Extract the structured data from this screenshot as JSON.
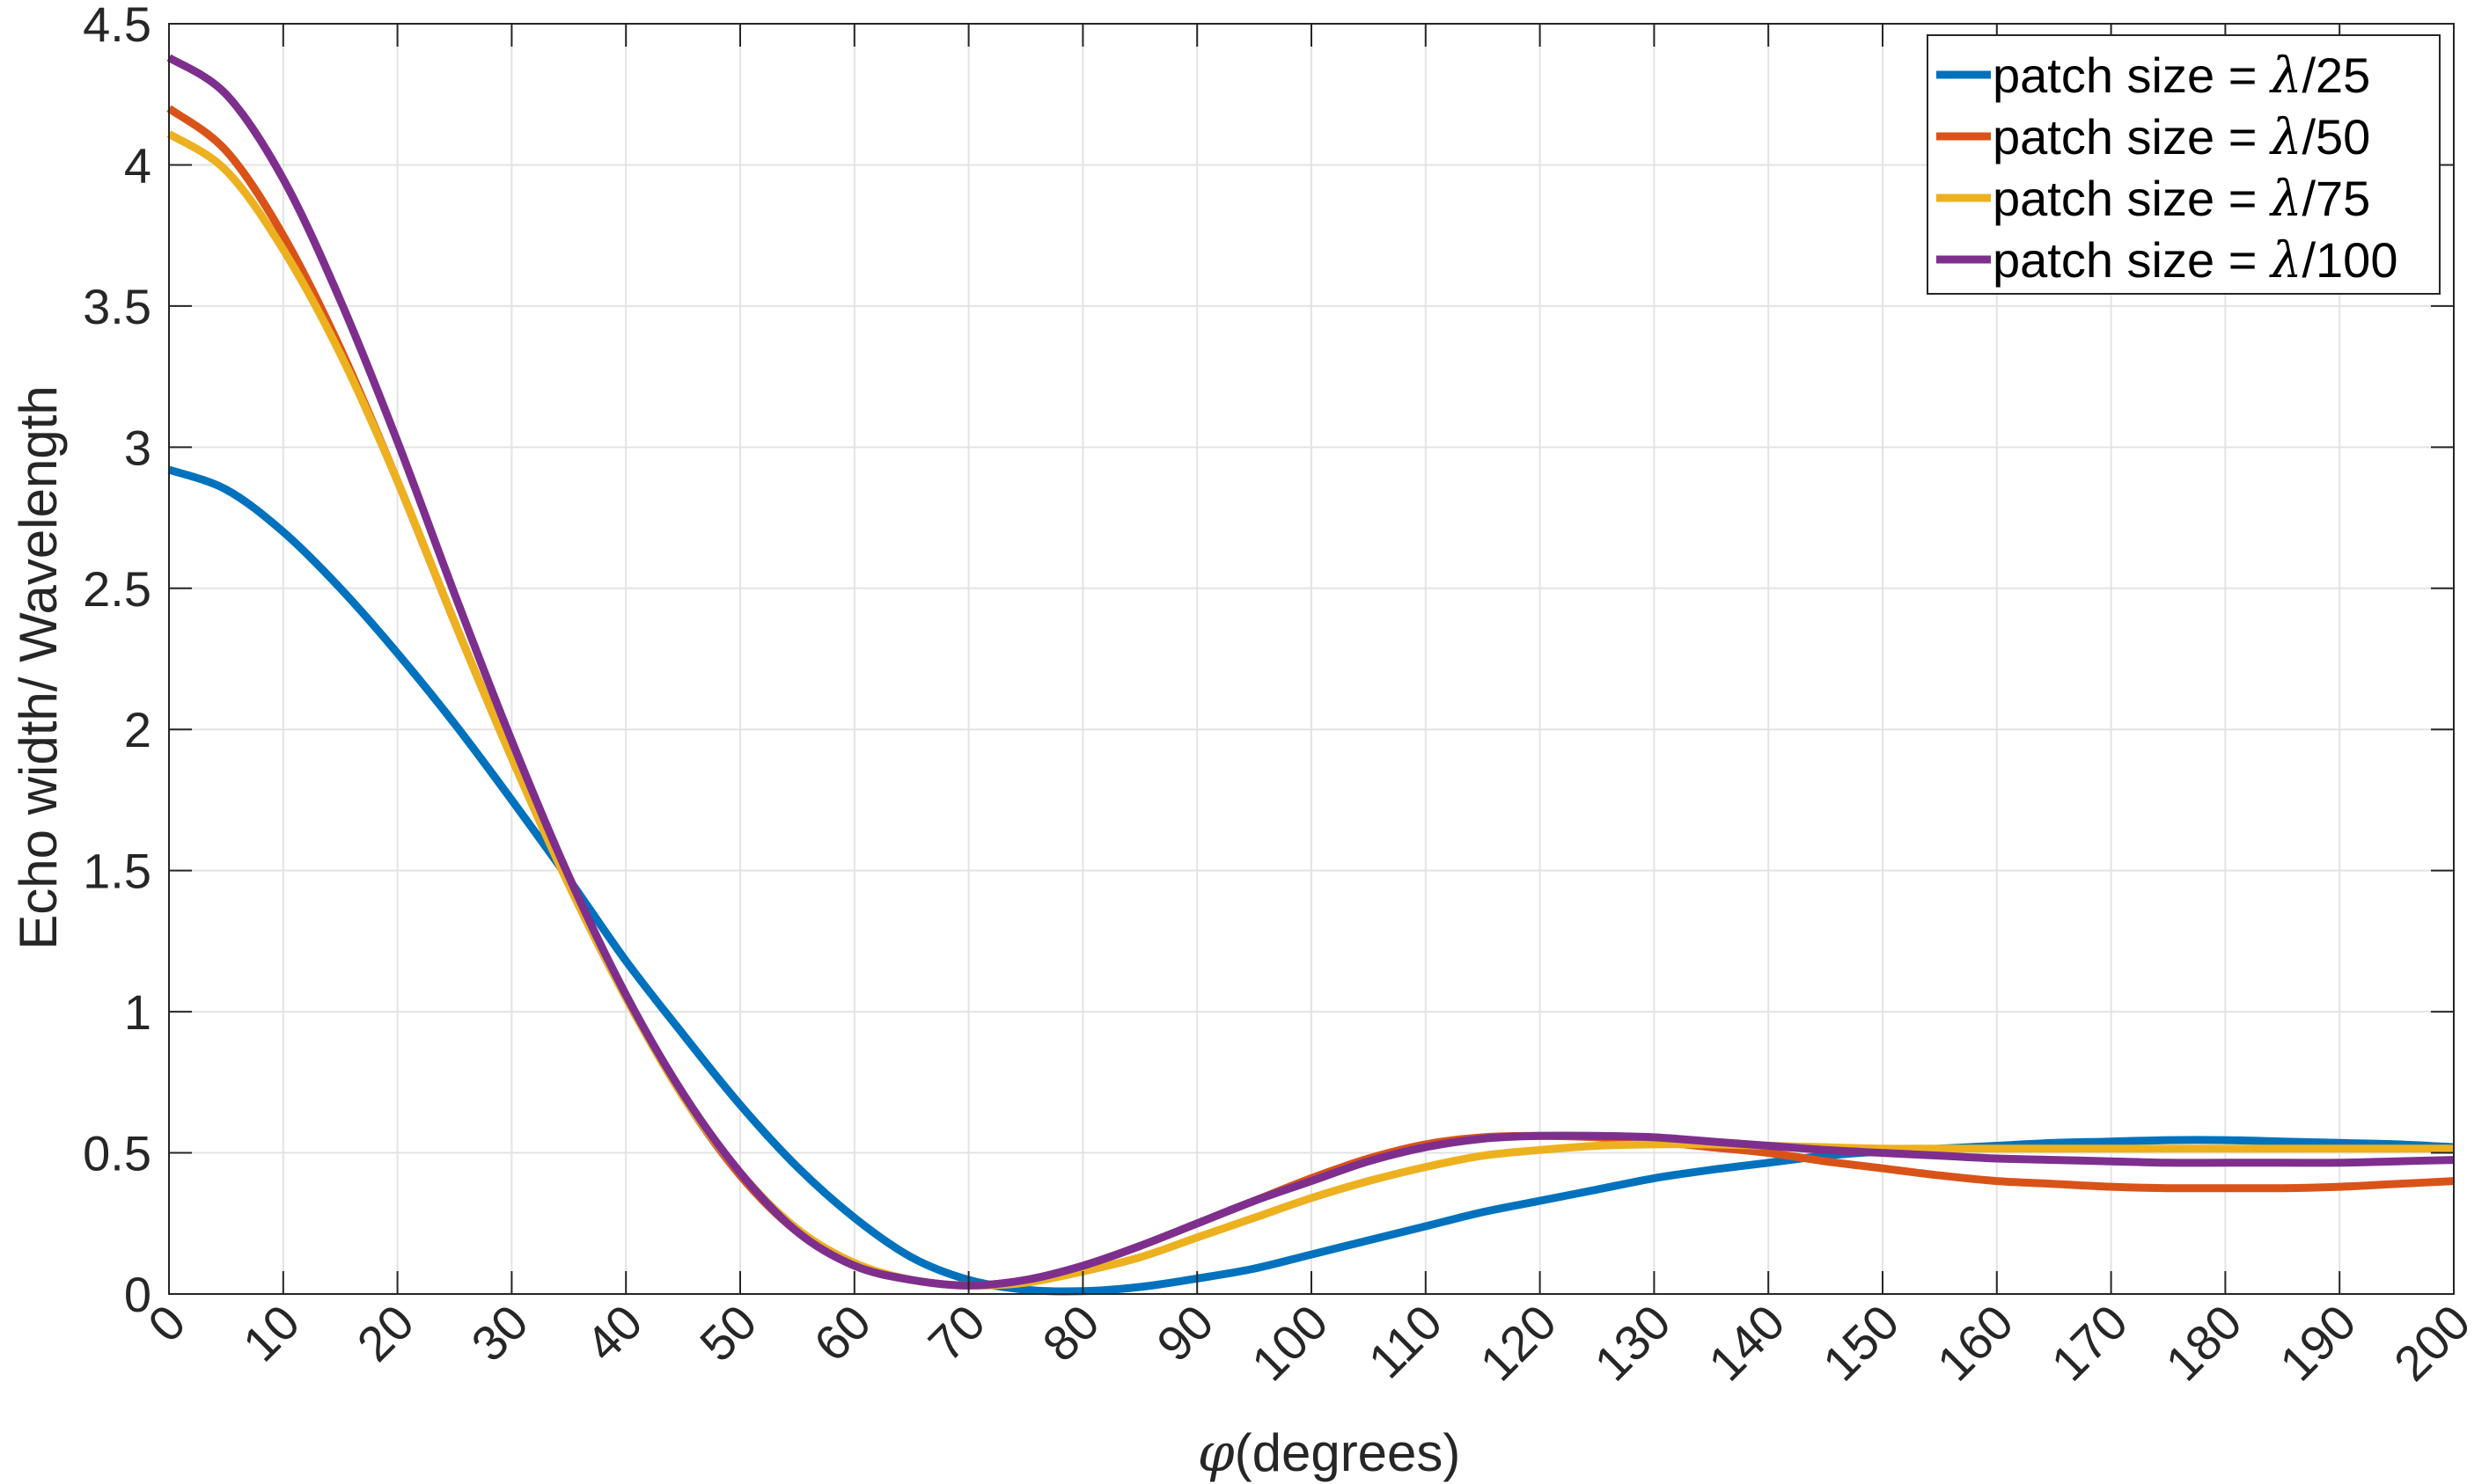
{
  "chart_data": {
    "type": "line",
    "title": "",
    "xlabel_symbol": "φ",
    "xlabel_text": "(degrees)",
    "ylabel": "Echo width/ Wavelength",
    "xlim": [
      0,
      200
    ],
    "ylim": [
      0,
      4.5
    ],
    "x_ticks": [
      "0",
      "10",
      "20",
      "30",
      "40",
      "50",
      "60",
      "70",
      "80",
      "90",
      "100",
      "110",
      "120",
      "130",
      "140",
      "150",
      "160",
      "170",
      "180",
      "190",
      "200"
    ],
    "y_ticks": [
      "0",
      "0.5",
      "1",
      "1.5",
      "2",
      "2.5",
      "3",
      "3.5",
      "4",
      "4.5"
    ],
    "grid": true,
    "legend_position": "top-right",
    "legend_prefix": "patch size = ",
    "legend_symbol": "λ",
    "series": [
      {
        "name": "patch size = λ/25",
        "label_suffix": "/25",
        "color": "#0072BD",
        "x": [
          0,
          5,
          10,
          15,
          20,
          25,
          30,
          35,
          40,
          45,
          50,
          55,
          60,
          65,
          70,
          75,
          80,
          85,
          90,
          95,
          100,
          105,
          110,
          115,
          120,
          125,
          130,
          135,
          140,
          145,
          150,
          155,
          160,
          165,
          170,
          175,
          180,
          185,
          190,
          195,
          200
        ],
        "y": [
          2.92,
          2.85,
          2.7,
          2.5,
          2.27,
          2.02,
          1.75,
          1.47,
          1.18,
          0.92,
          0.67,
          0.45,
          0.27,
          0.13,
          0.05,
          0.015,
          0.01,
          0.025,
          0.055,
          0.09,
          0.14,
          0.19,
          0.24,
          0.29,
          0.33,
          0.37,
          0.41,
          0.44,
          0.465,
          0.49,
          0.505,
          0.515,
          0.525,
          0.535,
          0.54,
          0.545,
          0.545,
          0.54,
          0.535,
          0.53,
          0.52
        ]
      },
      {
        "name": "patch size = λ/50",
        "label_suffix": "/50",
        "color": "#D95319",
        "x": [
          0,
          5,
          10,
          15,
          20,
          25,
          30,
          35,
          40,
          45,
          50,
          55,
          60,
          65,
          70,
          75,
          80,
          85,
          90,
          95,
          100,
          105,
          110,
          115,
          120,
          125,
          130,
          135,
          140,
          145,
          150,
          155,
          160,
          165,
          170,
          175,
          180,
          185,
          190,
          195,
          200
        ],
        "y": [
          4.2,
          4.05,
          3.75,
          3.35,
          2.88,
          2.38,
          1.9,
          1.45,
          1.05,
          0.7,
          0.42,
          0.22,
          0.1,
          0.05,
          0.03,
          0.05,
          0.1,
          0.17,
          0.25,
          0.33,
          0.41,
          0.48,
          0.53,
          0.555,
          0.56,
          0.555,
          0.54,
          0.52,
          0.5,
          0.47,
          0.445,
          0.42,
          0.4,
          0.39,
          0.38,
          0.375,
          0.375,
          0.375,
          0.38,
          0.39,
          0.4
        ]
      },
      {
        "name": "patch size = λ/75",
        "label_suffix": "/75",
        "color": "#EDB120",
        "x": [
          0,
          5,
          10,
          15,
          20,
          25,
          30,
          35,
          40,
          45,
          50,
          55,
          60,
          65,
          70,
          75,
          80,
          85,
          90,
          95,
          100,
          105,
          110,
          115,
          120,
          125,
          130,
          135,
          140,
          145,
          150,
          155,
          160,
          165,
          170,
          175,
          180,
          185,
          190,
          195,
          200
        ],
        "y": [
          4.11,
          3.98,
          3.7,
          3.33,
          2.88,
          2.38,
          1.9,
          1.45,
          1.05,
          0.7,
          0.43,
          0.23,
          0.11,
          0.05,
          0.03,
          0.04,
          0.08,
          0.13,
          0.2,
          0.27,
          0.34,
          0.4,
          0.45,
          0.49,
          0.51,
          0.525,
          0.53,
          0.53,
          0.525,
          0.52,
          0.515,
          0.515,
          0.515,
          0.515,
          0.515,
          0.515,
          0.515,
          0.515,
          0.515,
          0.515,
          0.515
        ]
      },
      {
        "name": "patch size = λ/100",
        "label_suffix": "/100",
        "color": "#7E2F8E",
        "x": [
          0,
          5,
          10,
          15,
          20,
          25,
          30,
          35,
          40,
          45,
          50,
          55,
          60,
          65,
          70,
          75,
          80,
          85,
          90,
          95,
          100,
          105,
          110,
          115,
          120,
          125,
          130,
          135,
          140,
          145,
          150,
          155,
          160,
          165,
          170,
          175,
          180,
          185,
          190,
          195,
          200
        ],
        "y": [
          4.38,
          4.25,
          3.95,
          3.52,
          3.02,
          2.48,
          1.96,
          1.48,
          1.06,
          0.71,
          0.43,
          0.22,
          0.1,
          0.05,
          0.03,
          0.05,
          0.1,
          0.17,
          0.25,
          0.33,
          0.4,
          0.47,
          0.52,
          0.55,
          0.56,
          0.56,
          0.555,
          0.54,
          0.525,
          0.51,
          0.5,
          0.49,
          0.48,
          0.475,
          0.47,
          0.465,
          0.465,
          0.465,
          0.465,
          0.47,
          0.475
        ]
      }
    ]
  }
}
